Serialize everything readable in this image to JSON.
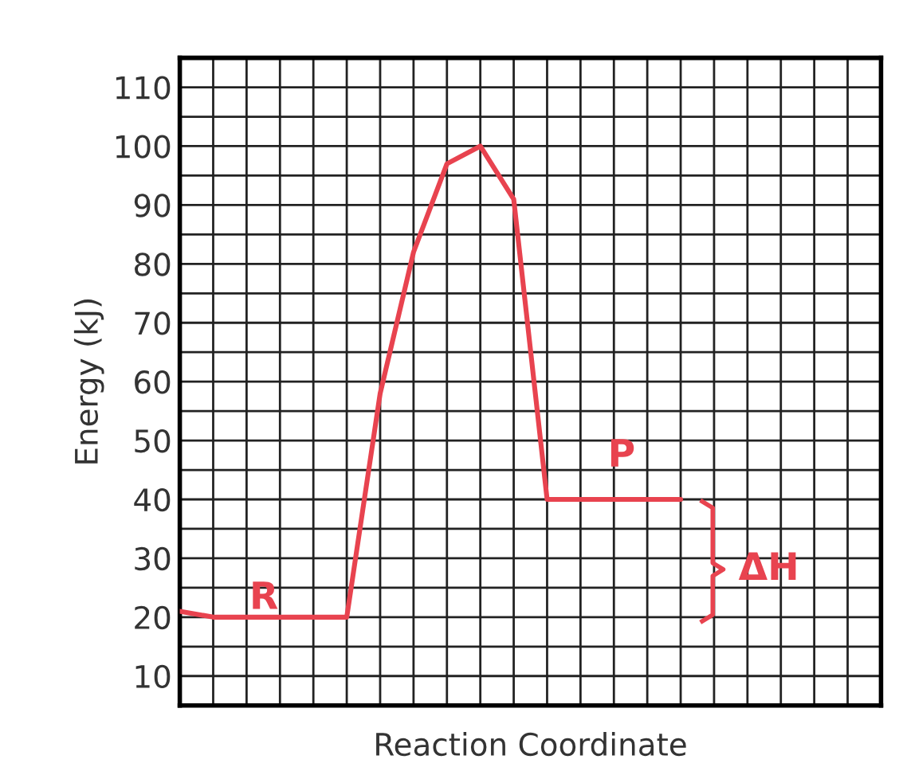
{
  "chart_data": {
    "type": "line",
    "xlabel": "Reaction Coordinate",
    "ylabel": "Energy (kJ)",
    "categories": [
      null,
      null,
      null,
      null,
      null,
      null,
      null,
      null,
      null,
      null,
      null,
      null,
      null,
      null,
      null,
      null,
      null,
      null,
      null,
      null,
      null,
      null
    ],
    "series": [
      {
        "color": "#e8434f",
        "values": [
          21,
          20,
          20,
          20,
          20,
          20,
          58,
          82,
          97,
          100,
          91,
          40,
          40,
          40,
          40,
          40,
          null,
          null,
          null,
          null,
          null,
          null
        ]
      }
    ],
    "annotations": [
      "R",
      "P",
      "ΔH"
    ],
    "ylim": [
      5,
      115
    ],
    "yticks": [
      {
        "value": 5,
        "label": null
      },
      10,
      {
        "value": 15,
        "label": null
      },
      20,
      {
        "value": 25,
        "label": null
      },
      30,
      {
        "value": 35,
        "label": null
      },
      40,
      {
        "value": 45,
        "label": null
      },
      50,
      {
        "value": 55,
        "label": null
      },
      60,
      {
        "value": 65,
        "label": null
      },
      70,
      {
        "value": 75,
        "label": null
      },
      80,
      {
        "value": 85,
        "label": null
      },
      90,
      {
        "value": 95,
        "label": null
      },
      100,
      {
        "value": 105,
        "label": null
      },
      110,
      {
        "value": 115,
        "label": null
      }
    ],
    "grid": true,
    "tick_labels": "y",
    "marker": "none",
    "line_style": "solid"
  }
}
